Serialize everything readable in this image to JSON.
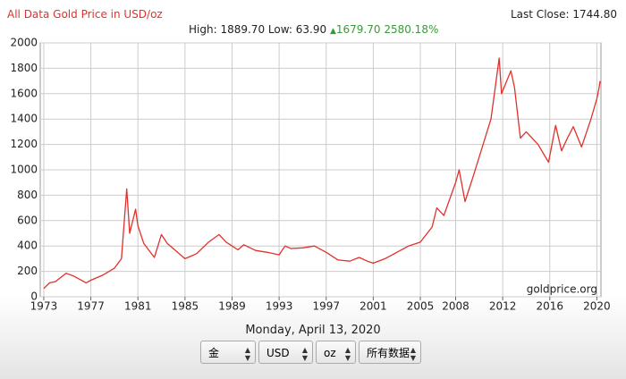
{
  "header": {
    "title": "All Data Gold Price in USD/oz",
    "last_close_label": "Last Close:",
    "last_close": "1744.80"
  },
  "stats": {
    "high_label": "High:",
    "high": "1889.70",
    "low_label": "Low:",
    "low": "63.90",
    "change": "1679.70",
    "change_pct": "2580.18%"
  },
  "chart_data": {
    "type": "line",
    "watermark": "goldprice.org",
    "x": [
      1973.0,
      1973.5,
      1974.0,
      1974.9,
      1975.5,
      1976.6,
      1977.0,
      1978.0,
      1979.0,
      1979.6,
      1980.05,
      1980.3,
      1980.8,
      1981.0,
      1981.5,
      1982.4,
      1983.0,
      1983.5,
      1984.0,
      1985.0,
      1985.5,
      1986.0,
      1987.0,
      1987.9,
      1988.5,
      1989.0,
      1989.5,
      1990.0,
      1991.0,
      1992.0,
      1993.0,
      1993.5,
      1994.0,
      1995.0,
      1996.0,
      1997.0,
      1998.0,
      1999.0,
      1999.8,
      2000.5,
      2001.0,
      2002.0,
      2003.0,
      2004.0,
      2005.0,
      2006.0,
      2006.4,
      2007.0,
      2008.0,
      2008.3,
      2008.8,
      2009.5,
      2010.0,
      2011.0,
      2011.7,
      2011.9,
      2012.7,
      2013.0,
      2013.5,
      2014.0,
      2015.0,
      2015.9,
      2016.5,
      2017.0,
      2017.5,
      2018.0,
      2018.7,
      2019.5,
      2020.0,
      2020.2,
      2020.28
    ],
    "series": [
      {
        "name": "Gold",
        "color": "#e0312b",
        "values": [
          65,
          110,
          120,
          185,
          165,
          110,
          130,
          170,
          225,
          300,
          850,
          500,
          690,
          560,
          420,
          310,
          490,
          420,
          380,
          300,
          320,
          340,
          430,
          490,
          430,
          400,
          370,
          410,
          365,
          350,
          330,
          400,
          380,
          385,
          400,
          350,
          290,
          280,
          310,
          280,
          265,
          300,
          350,
          400,
          430,
          550,
          700,
          640,
          900,
          1000,
          750,
          950,
          1100,
          1400,
          1880,
          1600,
          1780,
          1650,
          1250,
          1300,
          1200,
          1060,
          1350,
          1150,
          1250,
          1340,
          1180,
          1400,
          1560,
          1650,
          1700
        ]
      }
    ],
    "xlim": [
      1972.7,
      2020.35
    ],
    "xticks": [
      1973,
      1977,
      1981,
      1985,
      1989,
      1993,
      1997,
      2001,
      2005,
      2008,
      2012,
      2016,
      2020
    ],
    "ylim": [
      0,
      2000
    ],
    "yticks": [
      0,
      200,
      400,
      600,
      800,
      1000,
      1200,
      1400,
      1600,
      1800,
      2000
    ],
    "grid": true
  },
  "footer": {
    "date": "Monday, April 13, 2020",
    "controls": [
      "金",
      "USD",
      "oz",
      "所有数据"
    ]
  }
}
